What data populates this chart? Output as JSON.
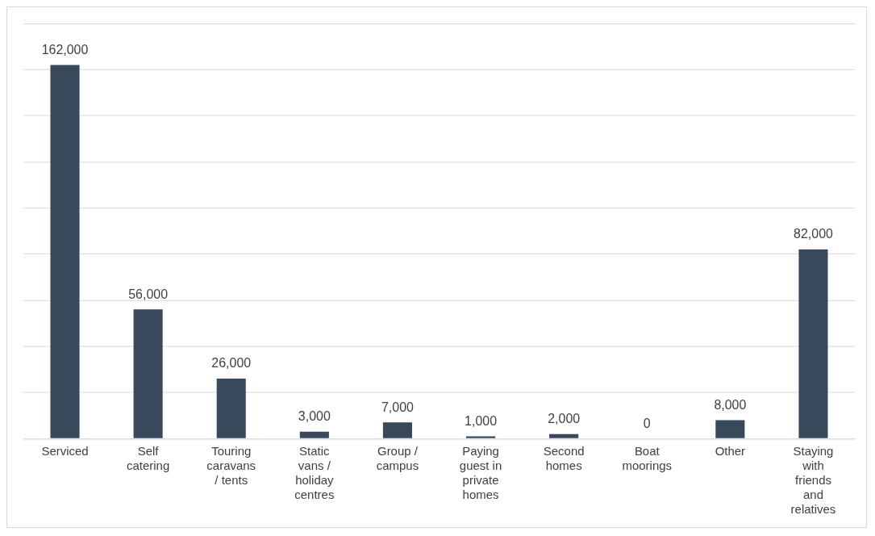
{
  "chart_data": {
    "type": "bar",
    "categories": [
      "Serviced",
      "Self catering",
      "Touring caravans / tents",
      "Static vans / holiday centres",
      "Group / campus",
      "Paying guest in private homes",
      "Second homes",
      "Boat moorings",
      "Other",
      "Staying with friends and relatives"
    ],
    "values": [
      162000,
      56000,
      26000,
      3000,
      7000,
      1000,
      2000,
      0,
      8000,
      82000
    ],
    "value_labels": [
      "162,000",
      "56,000",
      "26,000",
      "3,000",
      "7,000",
      "1,000",
      "2,000",
      "0",
      "8,000",
      "82,000"
    ],
    "color": "#37495a",
    "grid": "y",
    "tick_labels": "x",
    "legend": false
  }
}
